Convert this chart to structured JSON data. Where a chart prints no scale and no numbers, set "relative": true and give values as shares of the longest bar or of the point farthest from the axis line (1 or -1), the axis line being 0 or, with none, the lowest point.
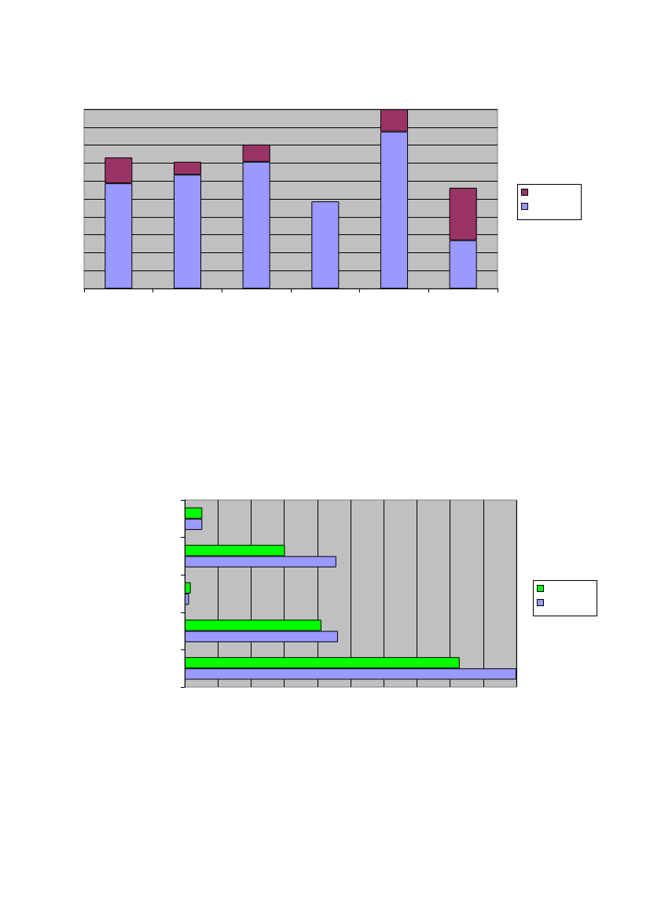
{
  "chart_data": [
    {
      "type": "bar",
      "stacked": true,
      "relative": true,
      "grid": "y",
      "categories": [
        null,
        null,
        null,
        null,
        null,
        null
      ],
      "series": [
        {
          "color": "#9999ff",
          "values": [
            0.587,
            0.635,
            0.707,
            0.486,
            0.875,
            0.269
          ]
        },
        {
          "color": "#993366",
          "values": [
            0.144,
            0.072,
            0.096,
            null,
            0.125,
            0.293
          ]
        }
      ]
    },
    {
      "type": "bar",
      "orientation": "horizontal",
      "relative": true,
      "grid": "x",
      "categories": [
        null,
        null,
        null,
        null,
        null
      ],
      "series": [
        {
          "color": "#00ff00",
          "values": [
            0.053,
            0.302,
            0.018,
            0.412,
            0.829
          ]
        },
        {
          "color": "#9999ff",
          "values": [
            0.053,
            0.457,
            0.013,
            0.462,
            1
          ]
        }
      ]
    }
  ]
}
